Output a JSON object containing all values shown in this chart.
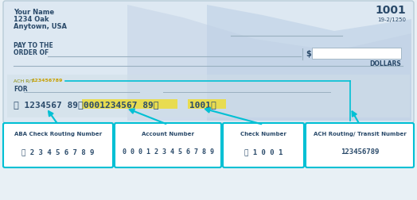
{
  "bg_color": "#e8f0f5",
  "check_bg": "#dce8f2",
  "white": "#ffffff",
  "cyan": "#00c0d4",
  "dark_blue": "#2a4a6a",
  "gray_text": "#5a6a7a",
  "yellow_highlight": "#f0e860",
  "gray_line": "#9ab0c0",
  "check_number": "1001",
  "fraction": "19-2/1250",
  "name_line1": "Your Name",
  "name_line2": "1234 Oak",
  "name_line3": "Anytown, USA",
  "ach_label_pre": "ACH R/T ",
  "ach_label_num": "123456789",
  "for_label": "FOR",
  "box1_title": "ABA Check Routing Number",
  "box1_value": "1 2 3 4 5 6 7 8 9",
  "box2_title": "Account Number",
  "box2_value": "0 0 0 1 2 3 4 5 6 7 8 9",
  "box3_title": "Check Number",
  "box3_value": "1 0 0 1",
  "box4_title": "ACH Routing/ Transit Number",
  "box4_value": "123456789",
  "figsize": [
    5.24,
    2.53
  ],
  "dpi": 100
}
